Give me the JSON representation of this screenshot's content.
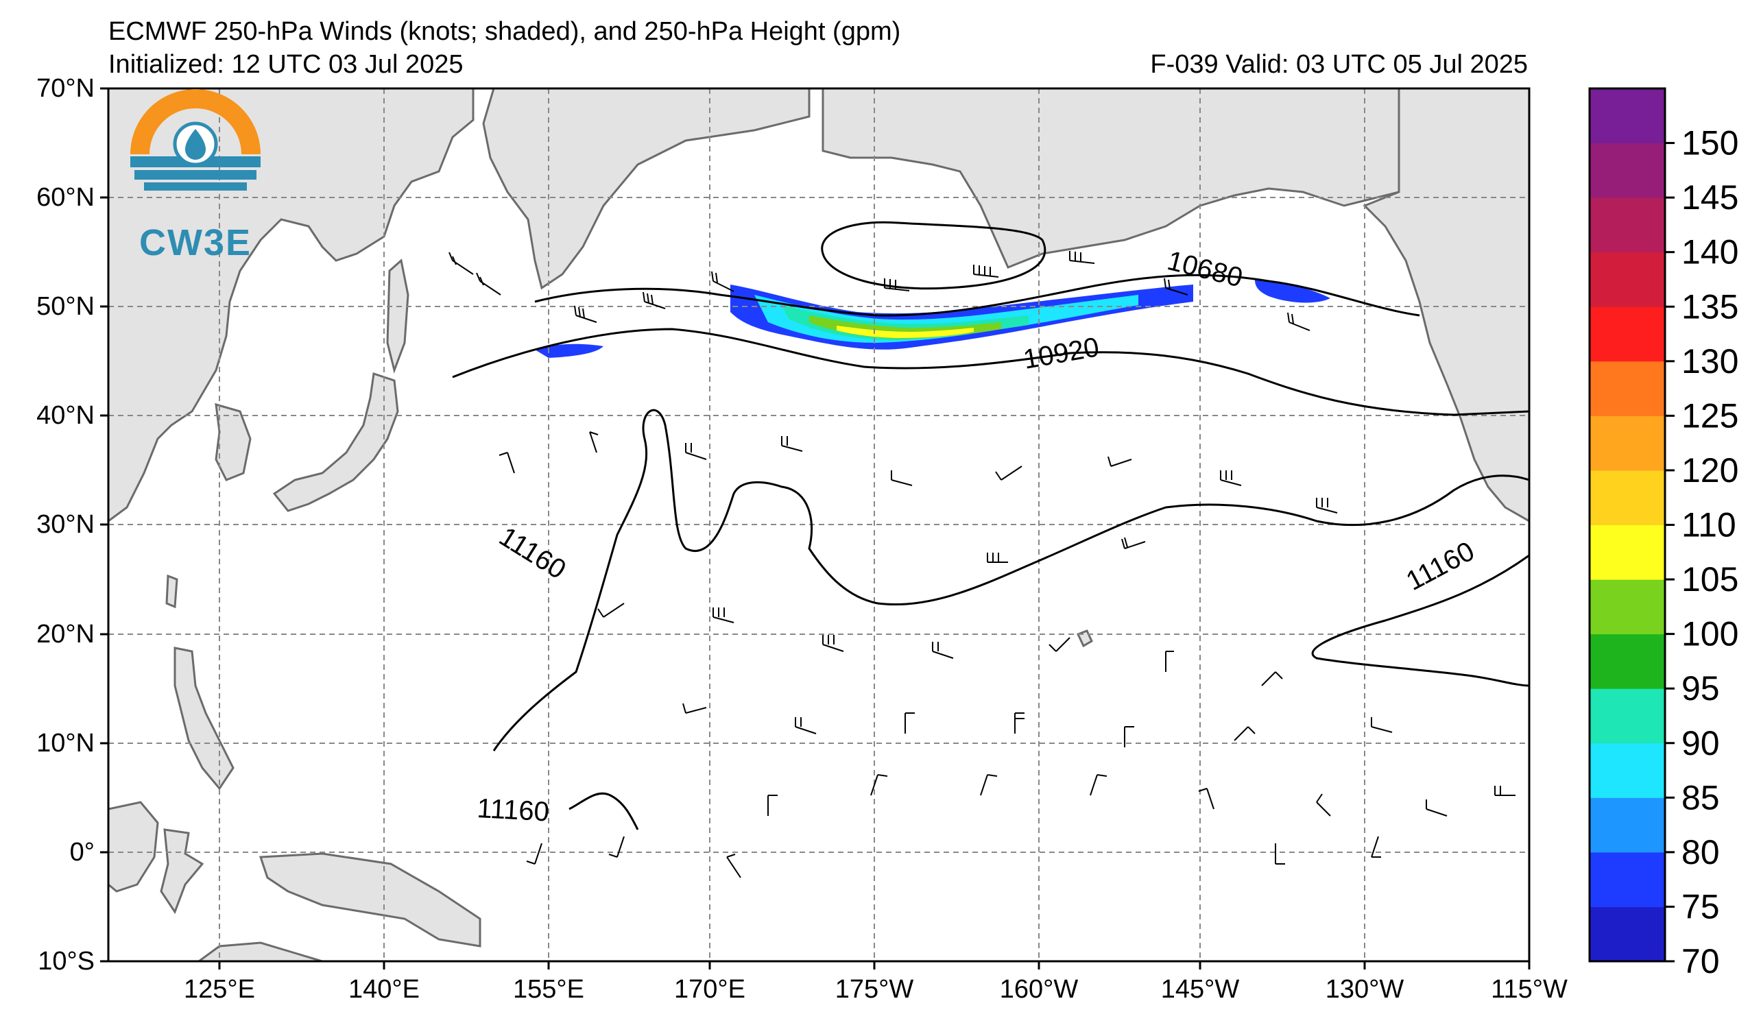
{
  "header": {
    "title": "ECMWF 250-hPa Winds (knots; shaded), and 250-hPa Height (gpm)",
    "initialized": "Initialized: 12 UTC 03 Jul 2025",
    "forecast": "F-039  Valid: 03 UTC 05 Jul 2025"
  },
  "logo": {
    "text": "CW3E",
    "icon": "cw3e-logo-icon"
  },
  "map": {
    "lat_labels": [
      "70°N",
      "60°N",
      "50°N",
      "40°N",
      "30°N",
      "20°N",
      "10°N",
      "0°",
      "10°S"
    ],
    "lon_labels": [
      "125°E",
      "140°E",
      "155°E",
      "170°E",
      "175°W",
      "160°W",
      "145°W",
      "130°W",
      "115°W"
    ],
    "contour_labels": [
      "10680",
      "10920",
      "11160",
      "11160",
      "11160"
    ],
    "colors": {
      "land": "#e3e3e3",
      "coast": "#6b6b6b",
      "grid": "#888888"
    }
  },
  "colorbar": {
    "units": "knots",
    "ticks": [
      "70",
      "75",
      "80",
      "85",
      "90",
      "95",
      "100",
      "105",
      "110",
      "120",
      "125",
      "130",
      "135",
      "140",
      "145",
      "150"
    ],
    "colors": [
      "#1e1ec8",
      "#1e3cff",
      "#1e96ff",
      "#1ee6ff",
      "#1ee6b4",
      "#1eb41e",
      "#78d21e",
      "#ffff1e",
      "#ffd21e",
      "#ffa51e",
      "#ff781e",
      "#ff1e1e",
      "#d21e3c",
      "#b41e5a",
      "#961e78",
      "#781e96"
    ]
  }
}
